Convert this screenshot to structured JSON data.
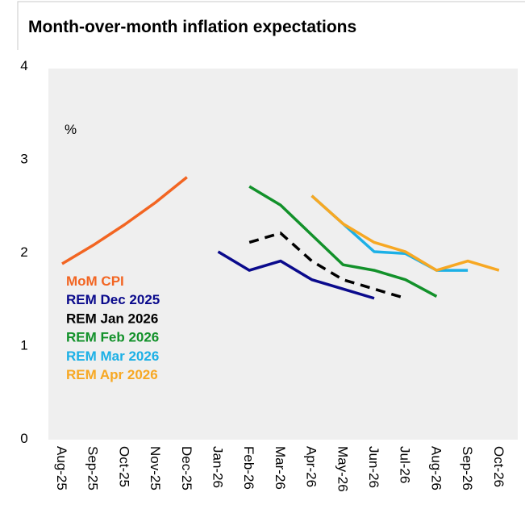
{
  "chart_data": {
    "type": "line",
    "title": "Month-over-month inflation expectations",
    "annotation": "%",
    "categories": [
      "Aug-25",
      "Sep-25",
      "Oct-25",
      "Nov-25",
      "Dec-25",
      "Jan-26",
      "Feb-26",
      "Mar-26",
      "Apr-26",
      "May-26",
      "Jun-26",
      "Jul-26",
      "Aug-26",
      "Sep-26",
      "Oct-26"
    ],
    "series": [
      {
        "name": "MoM CPI",
        "color": "#f26522",
        "values": [
          1.87,
          2.07,
          2.29,
          2.53,
          2.8,
          null,
          null,
          null,
          null,
          null,
          null,
          null,
          null,
          null,
          null
        ]
      },
      {
        "name": "REM Dec 2025",
        "color": "#0a0a8c",
        "values": [
          null,
          null,
          null,
          null,
          null,
          2.0,
          1.8,
          1.9,
          1.7,
          1.6,
          1.5,
          null,
          null,
          null,
          null
        ]
      },
      {
        "name": "REM Jan 2026",
        "color": "#000000",
        "dashed": true,
        "values": [
          null,
          null,
          null,
          null,
          null,
          null,
          2.1,
          2.2,
          1.9,
          1.7,
          1.6,
          1.5,
          null,
          null,
          null
        ]
      },
      {
        "name": "REM Feb 2026",
        "color": "#12912a",
        "values": [
          null,
          null,
          null,
          null,
          null,
          null,
          2.7,
          2.5,
          2.18,
          1.86,
          1.8,
          1.7,
          1.52,
          null,
          null
        ]
      },
      {
        "name": "REM Mar 2026",
        "color": "#1cb0e6",
        "values": [
          null,
          null,
          null,
          null,
          null,
          null,
          null,
          null,
          2.6,
          2.3,
          2.0,
          1.98,
          1.8,
          1.8,
          null
        ]
      },
      {
        "name": "REM Apr 2026",
        "color": "#f7a823",
        "values": [
          null,
          null,
          null,
          null,
          null,
          null,
          null,
          null,
          2.6,
          2.3,
          2.1,
          2.0,
          1.8,
          1.9,
          1.8
        ]
      }
    ],
    "ylim": [
      0,
      4
    ],
    "yticks": [
      0,
      1,
      2,
      3,
      4
    ]
  }
}
